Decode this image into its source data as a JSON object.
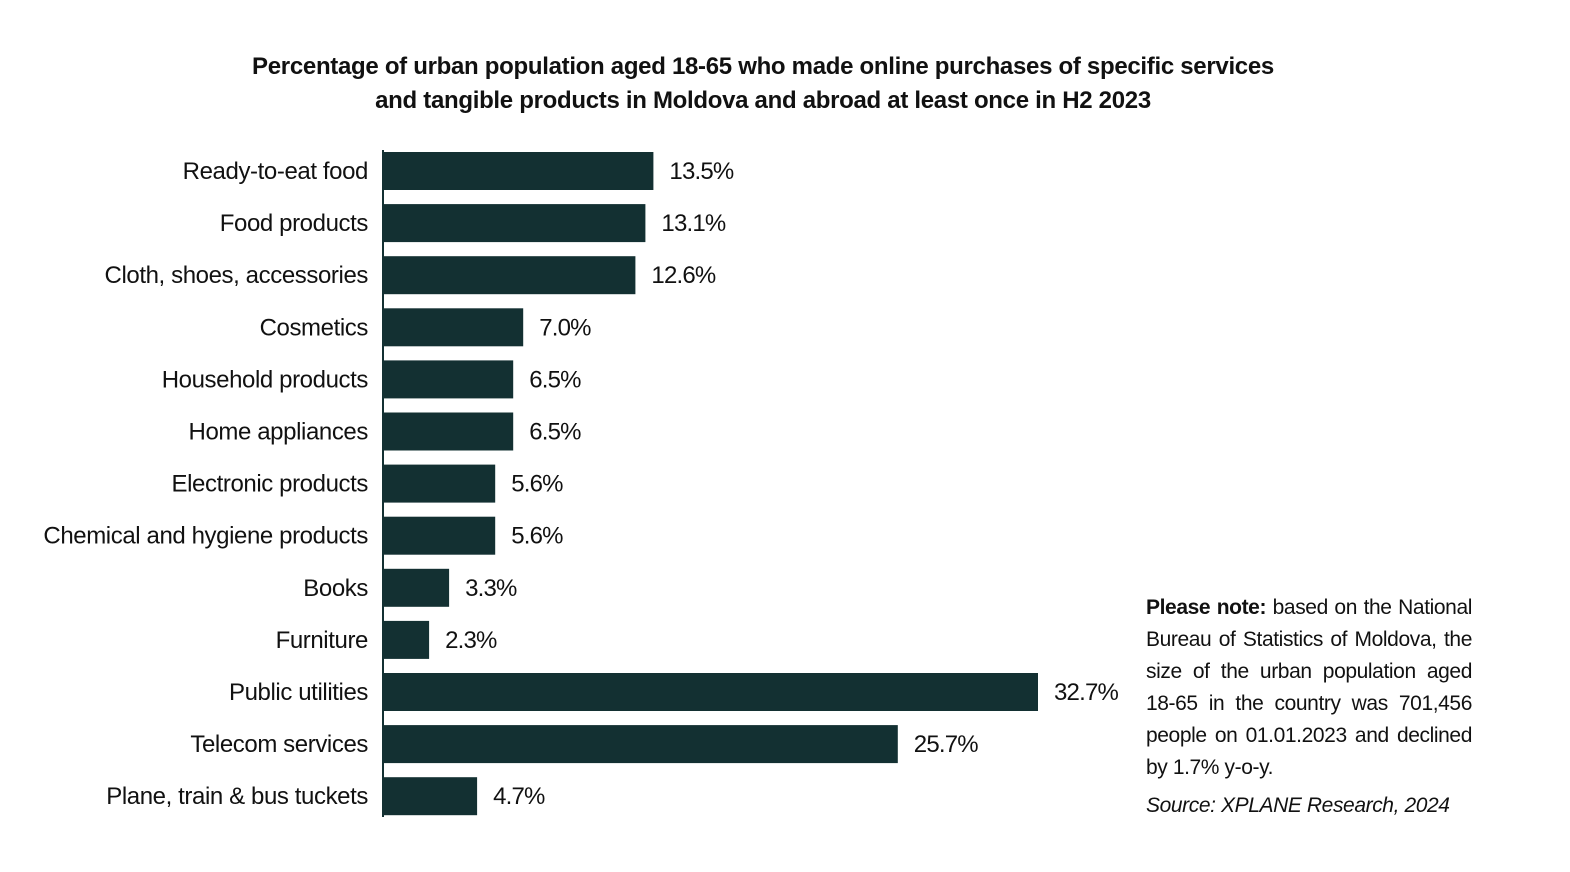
{
  "chart_data": {
    "type": "bar",
    "orientation": "horizontal",
    "title_lines": [
      "Percentage of urban population aged 18-65 who made online purchases of specific services",
      "and tangible products in Moldova and abroad at least once in H2 2023"
    ],
    "categories": [
      "Ready-to-eat food",
      "Food products",
      "Cloth, shoes, accessories",
      "Cosmetics",
      "Household products",
      "Home appliances",
      "Electronic products",
      "Chemical and hygiene products",
      "Books",
      "Furniture",
      "Public utilities",
      "Telecom services",
      "Plane, train & bus tuckets"
    ],
    "values": [
      13.5,
      13.1,
      12.6,
      7.0,
      6.5,
      6.5,
      5.6,
      5.6,
      3.3,
      2.3,
      32.7,
      25.7,
      4.7
    ],
    "value_labels": [
      "13.5%",
      "13.1%",
      "12.6%",
      "7.0%",
      "6.5%",
      "6.5%",
      "5.6%",
      "5.6%",
      "3.3%",
      "2.3%",
      "32.7%",
      "25.7%",
      "4.7%"
    ],
    "unit": "%",
    "xlim": [
      0,
      32.7
    ],
    "grid": false,
    "legend": "none",
    "bar_color": "#133032"
  },
  "note": {
    "label": "Please note:",
    "text": " based on the National Bureau of Statistics of Moldova, the size of the urban population aged 18-65 in the country was 701,456 people on 01.01.2023 and declined by 1.7% y-o-y."
  },
  "source": "Source: XPLANE Research, 2024"
}
